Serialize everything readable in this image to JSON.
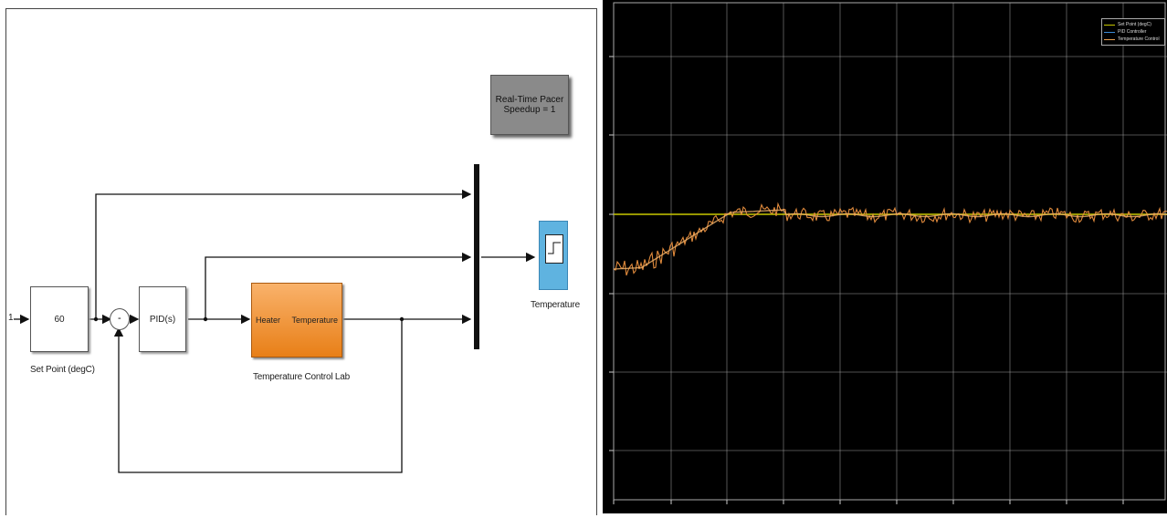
{
  "diagram": {
    "constant_block": "60",
    "setpoint_label": "Set Point (degC)",
    "sum_minus": "-",
    "pid_block": "PID(s)",
    "plant_in": "Heater",
    "plant_out": "Temperature",
    "plant_label": "Temperature Control Lab",
    "realtime_line1": "Real-Time Pacer",
    "realtime_line2": "Speedup = 1",
    "scope_label": "Temperature"
  },
  "scope": {
    "legend": [
      {
        "label": "Set Point (degC)",
        "color": "#c7c700"
      },
      {
        "label": "PID Controller",
        "color": "#3b8bd6"
      },
      {
        "label": "Temperature Control",
        "color": "#e8a050"
      }
    ],
    "background": "#000000",
    "grid_color": "#9a9a9a"
  },
  "chart_data": {
    "type": "line",
    "series": [
      {
        "name": "Set Point (degC)",
        "color": "#c7c700"
      },
      {
        "name": "Temperature Control",
        "color": "#e08a3c"
      }
    ]
  }
}
